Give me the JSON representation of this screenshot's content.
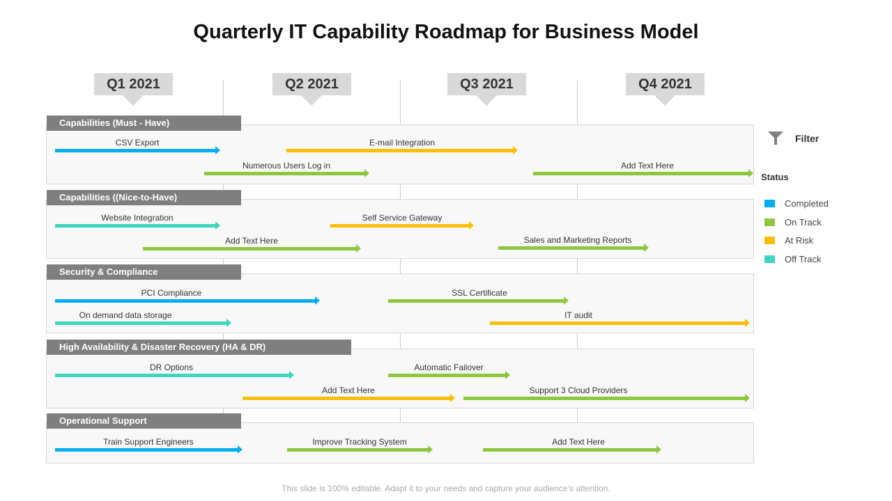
{
  "title": "Quarterly IT Capability Roadmap for Business Model",
  "quarters": [
    "Q1 2021",
    "Q2 2021",
    "Q3 2021",
    "Q4 2021"
  ],
  "colors": {
    "Completed": "#00aeef",
    "On Track": "#8dc63f",
    "At Risk": "#f9bf00",
    "Off Track": "#3fd5c0"
  },
  "sections": [
    {
      "label": "Capabilities (Must  - Have)",
      "items": [
        {
          "label": "CSV Export",
          "status": "Completed"
        },
        {
          "label": "E-mail Integration",
          "status": "At Risk"
        },
        {
          "label": "Numerous Users Log in",
          "status": "On Track"
        },
        {
          "label": "Add Text Here",
          "status": "On Track"
        }
      ]
    },
    {
      "label": "Capabilities ((Nice-to-Have)",
      "items": [
        {
          "label": "Website Integration",
          "status": "Off Track"
        },
        {
          "label": "Self Service Gateway",
          "status": "At Risk"
        },
        {
          "label": "Add Text Here",
          "status": "On Track"
        },
        {
          "label": "Sales and Marketing Reports",
          "status": "On Track"
        }
      ]
    },
    {
      "label": "Security & Compliance",
      "items": [
        {
          "label": "PCI Compliance",
          "status": "Completed"
        },
        {
          "label": "SSL Certificate",
          "status": "On Track"
        },
        {
          "label": "On demand data storage",
          "status": "Off Track"
        },
        {
          "label": "IT audit",
          "status": "At Risk"
        }
      ]
    },
    {
      "label": "High Availability & Disaster  Recovery (HA & DR)",
      "items": [
        {
          "label": "DR Options",
          "status": "Off Track"
        },
        {
          "label": "Automatic Failover",
          "status": "On Track"
        },
        {
          "label": "Add Text Here",
          "status": "At Risk"
        },
        {
          "label": "Support 3 Cloud Providers",
          "status": "On Track"
        }
      ]
    },
    {
      "label": "Operational Support",
      "items": [
        {
          "label": "Train Support Engineers",
          "status": "Completed"
        },
        {
          "label": "Improve Tracking System",
          "status": "On Track"
        },
        {
          "label": "Add Text Here",
          "status": "On Track"
        }
      ]
    }
  ],
  "legend": {
    "filter_label": "Filter",
    "filter_icon": "funnel-icon",
    "status_title": "Status",
    "items": [
      "Completed",
      "On Track",
      "At Risk",
      "Off Track"
    ]
  },
  "footer": "This slide is 100% editable. Adapt it to your needs and capture your audience’s attention."
}
